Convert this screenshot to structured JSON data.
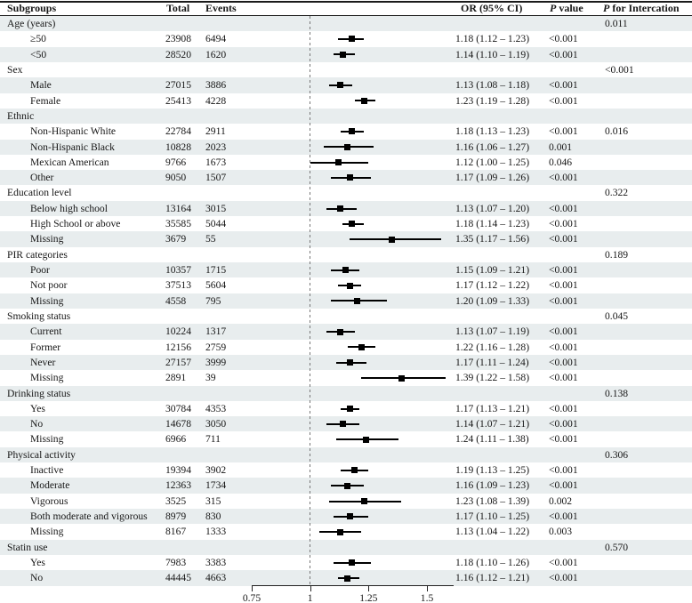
{
  "figure_name": "forest-plot-subgroup-analysis",
  "columns": {
    "subgroups": "Subgroups",
    "total": "Total",
    "events": "Events",
    "or_ci": "OR (95% CI)",
    "p_italic": "P",
    "p_value_rest": " value",
    "p_int_italic": "P",
    "p_int_rest": " for Intercation"
  },
  "colors": {
    "stripe": "#e8edee",
    "marker": "#000000",
    "ref_line": "#777777",
    "axis": "#222222",
    "text": "#161616"
  },
  "chart_data": {
    "type": "forest",
    "x_axis": {
      "ticks": [
        {
          "value": 0.75,
          "label": "0.75"
        },
        {
          "value": 1,
          "label": "1"
        },
        {
          "value": 1.25,
          "label": "1.25"
        },
        {
          "value": 1.5,
          "label": "1.5"
        }
      ],
      "min": 0.75,
      "max": 1.615,
      "reference_value": 1
    },
    "rows": [
      {
        "type": "group",
        "label": "Age (years)",
        "p_interaction": "0.011"
      },
      {
        "type": "item",
        "label": "≥50",
        "total": "23908",
        "events": "6494",
        "or": 1.18,
        "lo": 1.12,
        "hi": 1.23,
        "or_ci": "1.18 (1.12 – 1.23)",
        "p": "<0.001"
      },
      {
        "type": "item",
        "label": "<50",
        "total": "28520",
        "events": "1620",
        "or": 1.14,
        "lo": 1.1,
        "hi": 1.19,
        "or_ci": "1.14 (1.10 – 1.19)",
        "p": "<0.001"
      },
      {
        "type": "group",
        "label": "Sex",
        "p_interaction": "<0.001"
      },
      {
        "type": "item",
        "label": "Male",
        "total": "27015",
        "events": "3886",
        "or": 1.13,
        "lo": 1.08,
        "hi": 1.18,
        "or_ci": "1.13 (1.08 – 1.18)",
        "p": "<0.001"
      },
      {
        "type": "item",
        "label": "Female",
        "total": "25413",
        "events": "4228",
        "or": 1.23,
        "lo": 1.19,
        "hi": 1.28,
        "or_ci": "1.23 (1.19 – 1.28)",
        "p": "<0.001"
      },
      {
        "type": "group",
        "label": "Ethnic",
        "p_interaction": ""
      },
      {
        "type": "item",
        "label": "Non-Hispanic White",
        "total": "22784",
        "events": "2911",
        "or": 1.18,
        "lo": 1.13,
        "hi": 1.23,
        "or_ci": "1.18 (1.13 – 1.23)",
        "p": "<0.001",
        "p_interaction": "0.016"
      },
      {
        "type": "item",
        "label": "Non-Hispanic Black",
        "total": "10828",
        "events": "2023",
        "or": 1.16,
        "lo": 1.06,
        "hi": 1.27,
        "or_ci": "1.16 (1.06 – 1.27)",
        "p": "0.001"
      },
      {
        "type": "item",
        "label": "Mexican American",
        "total": "9766",
        "events": "1673",
        "or": 1.12,
        "lo": 1.0,
        "hi": 1.25,
        "or_ci": "1.12 (1.00 – 1.25)",
        "p": "0.046"
      },
      {
        "type": "item",
        "label": "Other",
        "total": "9050",
        "events": "1507",
        "or": 1.17,
        "lo": 1.09,
        "hi": 1.26,
        "or_ci": "1.17 (1.09 – 1.26)",
        "p": "<0.001"
      },
      {
        "type": "group",
        "label": "Education level",
        "p_interaction": "0.322"
      },
      {
        "type": "item",
        "label": "Below high school",
        "total": "13164",
        "events": "3015",
        "or": 1.13,
        "lo": 1.07,
        "hi": 1.2,
        "or_ci": "1.13 (1.07 – 1.20)",
        "p": "<0.001"
      },
      {
        "type": "item",
        "label": "High School or above",
        "total": "35585",
        "events": "5044",
        "or": 1.18,
        "lo": 1.14,
        "hi": 1.23,
        "or_ci": "1.18 (1.14 – 1.23)",
        "p": "<0.001"
      },
      {
        "type": "item",
        "label": "Missing",
        "total": "3679",
        "events": "55",
        "or": 1.35,
        "lo": 1.17,
        "hi": 1.56,
        "or_ci": "1.35 (1.17 – 1.56)",
        "p": "<0.001"
      },
      {
        "type": "group",
        "label": "PIR categories",
        "p_interaction": "0.189"
      },
      {
        "type": "item",
        "label": "Poor",
        "total": "10357",
        "events": "1715",
        "or": 1.15,
        "lo": 1.09,
        "hi": 1.21,
        "or_ci": "1.15 (1.09 – 1.21)",
        "p": "<0.001"
      },
      {
        "type": "item",
        "label": "Not poor",
        "total": "37513",
        "events": "5604",
        "or": 1.17,
        "lo": 1.12,
        "hi": 1.22,
        "or_ci": "1.17 (1.12 – 1.22)",
        "p": "<0.001"
      },
      {
        "type": "item",
        "label": "Missing",
        "total": "4558",
        "events": "795",
        "or": 1.2,
        "lo": 1.09,
        "hi": 1.33,
        "or_ci": "1.20 (1.09 – 1.33)",
        "p": "<0.001"
      },
      {
        "type": "group",
        "label": "Smoking status",
        "p_interaction": "0.045"
      },
      {
        "type": "item",
        "label": "Current",
        "total": "10224",
        "events": "1317",
        "or": 1.13,
        "lo": 1.07,
        "hi": 1.19,
        "or_ci": "1.13 (1.07 – 1.19)",
        "p": "<0.001"
      },
      {
        "type": "item",
        "label": "Former",
        "total": "12156",
        "events": "2759",
        "or": 1.22,
        "lo": 1.16,
        "hi": 1.28,
        "or_ci": "1.22 (1.16 – 1.28)",
        "p": "<0.001"
      },
      {
        "type": "item",
        "label": "Never",
        "total": "27157",
        "events": "3999",
        "or": 1.17,
        "lo": 1.11,
        "hi": 1.24,
        "or_ci": "1.17 (1.11 – 1.24)",
        "p": "<0.001"
      },
      {
        "type": "item",
        "label": "Missing",
        "total": "2891",
        "events": "39",
        "or": 1.39,
        "lo": 1.22,
        "hi": 1.58,
        "or_ci": "1.39 (1.22 – 1.58)",
        "p": "<0.001"
      },
      {
        "type": "group",
        "label": "Drinking status",
        "p_interaction": "0.138"
      },
      {
        "type": "item",
        "label": "Yes",
        "total": "30784",
        "events": "4353",
        "or": 1.17,
        "lo": 1.13,
        "hi": 1.21,
        "or_ci": "1.17 (1.13 – 1.21)",
        "p": "<0.001"
      },
      {
        "type": "item",
        "label": "No",
        "total": "14678",
        "events": "3050",
        "or": 1.14,
        "lo": 1.07,
        "hi": 1.21,
        "or_ci": "1.14 (1.07 – 1.21)",
        "p": "<0.001"
      },
      {
        "type": "item",
        "label": "Missing",
        "total": "6966",
        "events": "711",
        "or": 1.24,
        "lo": 1.11,
        "hi": 1.38,
        "or_ci": "1.24 (1.11 – 1.38)",
        "p": "<0.001"
      },
      {
        "type": "group",
        "label": "Physical activity",
        "p_interaction": "0.306"
      },
      {
        "type": "item",
        "label": "Inactive",
        "total": "19394",
        "events": "3902",
        "or": 1.19,
        "lo": 1.13,
        "hi": 1.25,
        "or_ci": "1.19 (1.13 – 1.25)",
        "p": "<0.001"
      },
      {
        "type": "item",
        "label": "Moderate",
        "total": "12363",
        "events": "1734",
        "or": 1.16,
        "lo": 1.09,
        "hi": 1.23,
        "or_ci": "1.16 (1.09 – 1.23)",
        "p": "<0.001"
      },
      {
        "type": "item",
        "label": "Vigorous",
        "total": "3525",
        "events": "315",
        "or": 1.23,
        "lo": 1.08,
        "hi": 1.39,
        "or_ci": "1.23 (1.08 – 1.39)",
        "p": "0.002"
      },
      {
        "type": "item",
        "label": "Both moderate and vigorous",
        "total": "8979",
        "events": "830",
        "or": 1.17,
        "lo": 1.1,
        "hi": 1.25,
        "or_ci": "1.17 (1.10 – 1.25)",
        "p": "<0.001"
      },
      {
        "type": "item",
        "label": "Missing",
        "total": "8167",
        "events": "1333",
        "or": 1.13,
        "lo": 1.04,
        "hi": 1.22,
        "or_ci": "1.13 (1.04 – 1.22)",
        "p": "0.003"
      },
      {
        "type": "group",
        "label": "Statin use",
        "p_interaction": "0.570"
      },
      {
        "type": "item",
        "label": "Yes",
        "total": "7983",
        "events": "3383",
        "or": 1.18,
        "lo": 1.1,
        "hi": 1.26,
        "or_ci": "1.18 (1.10 – 1.26)",
        "p": "<0.001"
      },
      {
        "type": "item",
        "label": "No",
        "total": "44445",
        "events": "4663",
        "or": 1.16,
        "lo": 1.12,
        "hi": 1.21,
        "or_ci": "1.16 (1.12 – 1.21)",
        "p": "<0.001"
      }
    ]
  }
}
